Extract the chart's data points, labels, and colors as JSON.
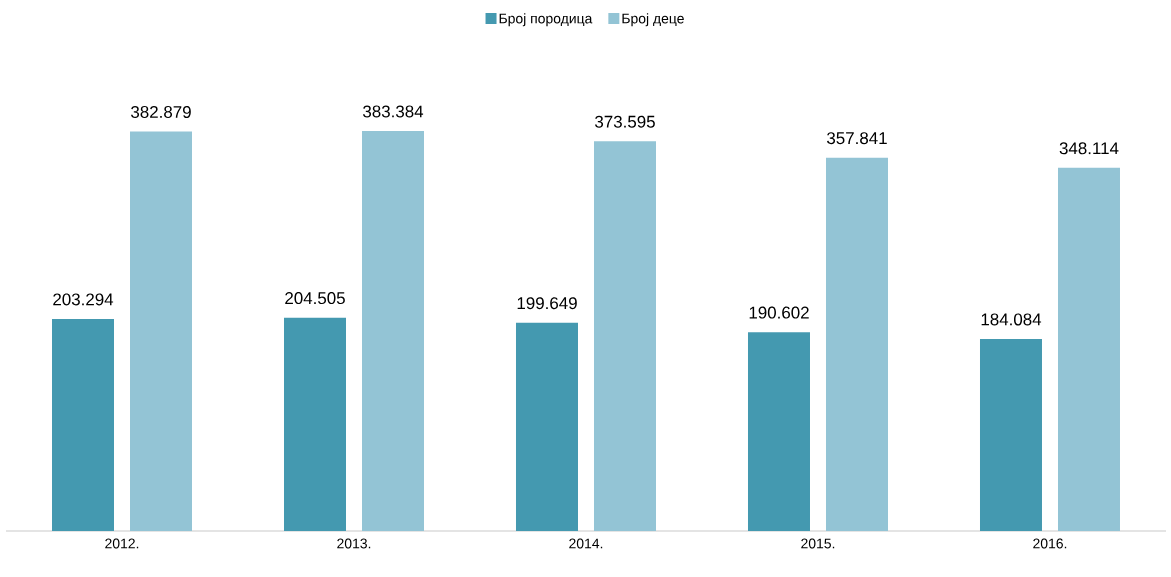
{
  "chart_data": {
    "type": "bar",
    "categories": [
      "2012.",
      "2013.",
      "2014.",
      "2015.",
      "2016."
    ],
    "series": [
      {
        "name": "Број породица",
        "color": "#4499b0",
        "values": [
          203294,
          204505,
          199649,
          190602,
          184084
        ],
        "value_labels": [
          "203.294",
          "204.505",
          "199.649",
          "190.602",
          "184.084"
        ]
      },
      {
        "name": "Број деце",
        "color": "#93c4d5",
        "values": [
          382879,
          383384,
          373595,
          357841,
          348114
        ],
        "value_labels": [
          "382.879",
          "383.384",
          "373.595",
          "357.841",
          "348.114"
        ]
      }
    ],
    "legend": "top"
  }
}
